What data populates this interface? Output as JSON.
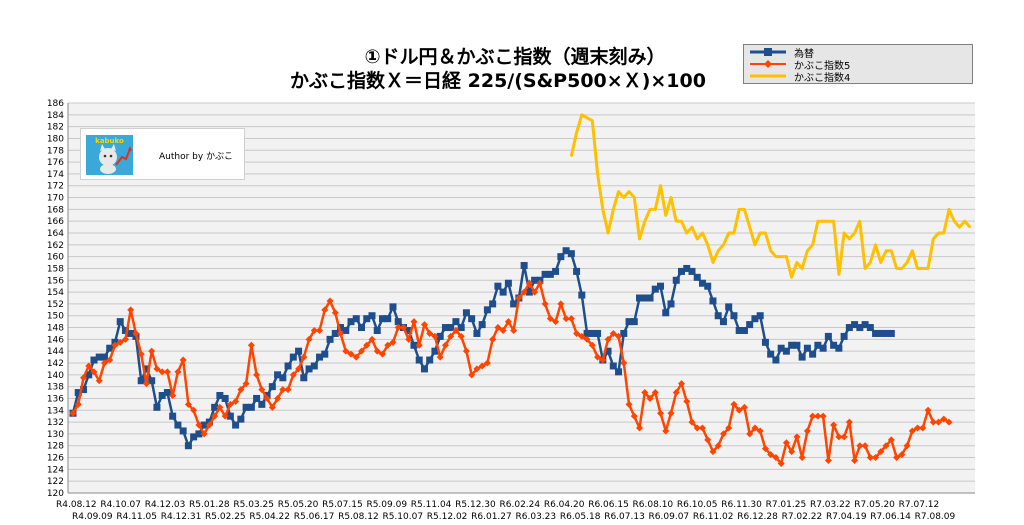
{
  "title_line1": "①ドル円＆かぶこ指数（週末刻み）",
  "title_line2": "かぶこ指数Ｘ＝日経 225/(S&P500×Ｘ)×100",
  "author_text": "Author by かぶこ",
  "logo_text": "kabuko",
  "chart_data": {
    "type": "line",
    "ylim": [
      120,
      186
    ],
    "y_ticks": [
      120,
      122,
      124,
      126,
      128,
      130,
      132,
      134,
      136,
      138,
      140,
      142,
      144,
      146,
      148,
      150,
      152,
      154,
      156,
      158,
      160,
      162,
      164,
      166,
      168,
      170,
      172,
      174,
      176,
      178,
      180,
      182,
      184,
      186
    ],
    "x_ticks_row1": [
      "R4.08.12",
      "R4.10.07",
      "R4.12.03",
      "R5.01.28",
      "R5.03.25",
      "R5.05.20",
      "R5.07.15",
      "R5.09.09",
      "R5.11.04",
      "R5.12.30",
      "R6.02.24",
      "R6.04.20",
      "R6.06.15",
      "R6.08.10",
      "R6.10.05",
      "R6.11.30",
      "R7.01.25",
      "R7.03.22",
      "R7.05.20",
      "R7.07.12"
    ],
    "x_ticks_row2": [
      "R4.09.09",
      "R4.11.05",
      "R4.12.31",
      "R5.02.25",
      "R5.04.22",
      "R5.06.17",
      "R5.08.12",
      "R5.10.07",
      "R5.12.02",
      "R6.01.27",
      "R6.03.23",
      "R6.05.18",
      "R6.07.13",
      "R6.09.07",
      "R6.11.02",
      "R6.12.28",
      "R7.02.22",
      "R7.04.19",
      "R7.06.14",
      "R7.08.09"
    ],
    "grid": true,
    "legend_position": "top-right",
    "series": [
      {
        "name": "為替",
        "color": "#1f4e8c",
        "marker": "square",
        "start_index": 0,
        "values": [
          133.5,
          137,
          137.5,
          140,
          142.5,
          143,
          143,
          144.5,
          145.5,
          149,
          147.5,
          147,
          146.5,
          139,
          141,
          139,
          134.5,
          136.5,
          137,
          133,
          131.5,
          130.5,
          128,
          129.5,
          130,
          131.5,
          132,
          134.5,
          136.5,
          136,
          133,
          131.5,
          132.5,
          134.5,
          134.5,
          136,
          135,
          136.5,
          138,
          140,
          139.5,
          141.5,
          143,
          144,
          139.5,
          141,
          141.5,
          143,
          143.5,
          146,
          147,
          148,
          147.5,
          149,
          149.5,
          148,
          149.5,
          150,
          147.5,
          149.5,
          149.5,
          151.5,
          149,
          148,
          147.5,
          145,
          142.5,
          141,
          142.5,
          144,
          146.5,
          148,
          148,
          149,
          148,
          150.5,
          149.5,
          147,
          148.5,
          151,
          152,
          155,
          154,
          155.5,
          152,
          153,
          158.5,
          154,
          156,
          156,
          157,
          157,
          157.5,
          160,
          161,
          160.5,
          157.5,
          153.5,
          147,
          147,
          147,
          142.5,
          144,
          141.5,
          140.5,
          147,
          149,
          149,
          153,
          153,
          153,
          154.5,
          155,
          150.5,
          152,
          156,
          157.5,
          158,
          157.5,
          156.5,
          155.5,
          155,
          152.5,
          150,
          149,
          151.5,
          150,
          147.5,
          147.5,
          148.5,
          149.5,
          150,
          145.5,
          143.5,
          142.5,
          144.5,
          144,
          145,
          145,
          143,
          144.5,
          143.5,
          145,
          144.5,
          146.5,
          145,
          144.5,
          146.5,
          148,
          148.5,
          148,
          148.5,
          148,
          147,
          147,
          147,
          147
        ]
      },
      {
        "name": "かぶこ指数5",
        "color": "#ff4500",
        "marker": "diamond",
        "start_index": 0,
        "values": [
          133.5,
          135,
          139.5,
          141.5,
          140.5,
          139,
          142,
          142.5,
          145,
          145.5,
          146,
          151,
          147,
          143.5,
          138.5,
          144,
          141,
          140.5,
          140.5,
          136.5,
          140.5,
          142.5,
          135,
          134,
          131.5,
          130,
          131.5,
          133,
          134.5,
          133,
          135,
          135.5,
          137.5,
          138.5,
          145,
          140,
          137.5,
          136,
          134.5,
          136,
          137.5,
          137.5,
          140,
          141,
          143,
          146,
          147.5,
          147.5,
          151,
          152.5,
          150.5,
          147,
          144,
          143.5,
          143,
          144,
          145,
          146,
          144,
          143.5,
          145,
          145.5,
          148,
          148,
          146,
          149,
          145,
          148.5,
          147,
          146.5,
          143,
          145,
          146.5,
          147.5,
          146.5,
          144,
          140,
          141,
          141.5,
          142,
          146,
          148,
          147.5,
          149,
          147.5,
          153,
          154,
          155.5,
          154,
          155.5,
          152,
          149.5,
          149,
          152,
          149.5,
          149.5,
          147,
          146.5,
          146,
          145,
          143,
          142.5,
          146,
          147,
          146.5,
          142,
          135,
          133,
          131,
          137,
          136,
          137,
          133.5,
          130.5,
          133.5,
          137,
          138.5,
          135.5,
          132,
          131,
          131,
          129,
          127,
          128,
          130,
          131,
          135,
          134,
          134.5,
          130,
          131,
          130.5,
          127.5,
          126.5,
          126,
          125,
          128.5,
          127,
          129.5,
          126,
          130.5,
          133,
          133,
          133,
          125.5,
          131.5,
          129.5,
          129.5,
          132,
          125.5,
          128,
          128,
          126,
          126,
          127,
          128,
          129,
          126,
          126.5,
          128,
          130.5,
          131,
          131,
          134,
          132,
          132,
          132.5,
          132
        ]
      },
      {
        "name": "かぶこ指数4",
        "color": "#ffc000",
        "marker": "none",
        "start_index": 95,
        "values": [
          177,
          181,
          184,
          183.5,
          183,
          174,
          168,
          164,
          168,
          171,
          170,
          171,
          170,
          163,
          166,
          168,
          168,
          172,
          167,
          170,
          166,
          166,
          164,
          165,
          163,
          164,
          162,
          159,
          161,
          162,
          164,
          164,
          168,
          168,
          165,
          162,
          164,
          164,
          161,
          160,
          160,
          160,
          156.5,
          159,
          158,
          161,
          162,
          166,
          166,
          166,
          166,
          157,
          164,
          163,
          164,
          166,
          158,
          159,
          162,
          159,
          161,
          161,
          158,
          158,
          159,
          161,
          158,
          158,
          158,
          163,
          164,
          164,
          168,
          166,
          165,
          166,
          165
        ]
      }
    ]
  }
}
